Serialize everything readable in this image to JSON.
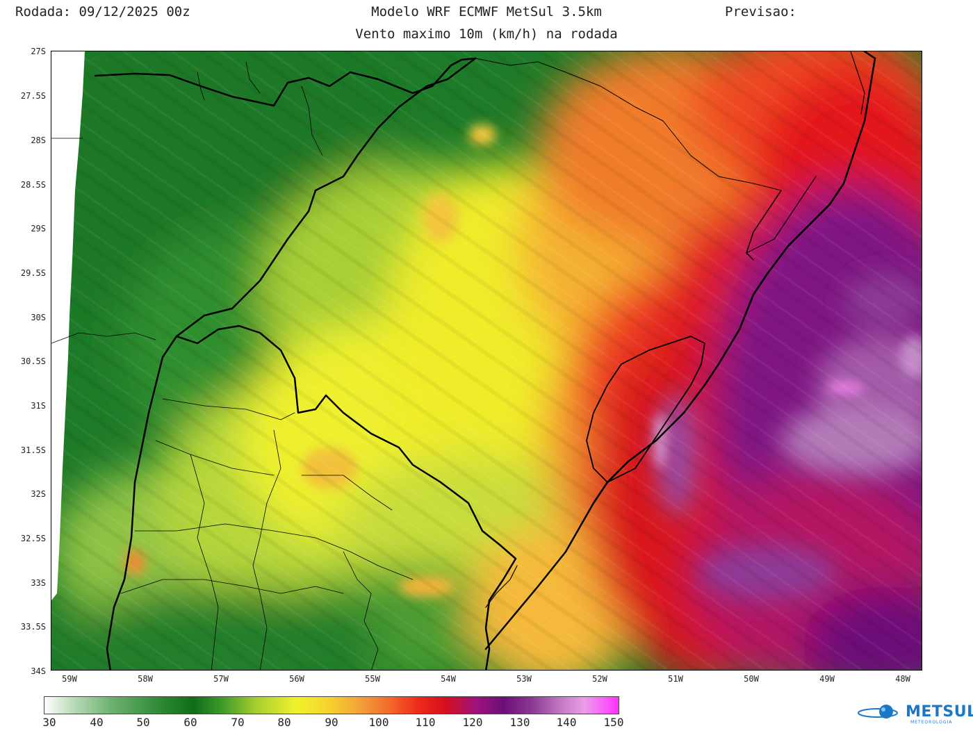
{
  "header": {
    "left": "Rodada: 09/12/2025 00z",
    "center": "Modelo WRF ECMWF MetSul 3.5km",
    "right": "Previsao:",
    "subtitle": "Vento maximo 10m (km/h) na rodada"
  },
  "map": {
    "lat_labels": [
      "27S",
      "27.5S",
      "28S",
      "28.5S",
      "29S",
      "29.5S",
      "30S",
      "30.5S",
      "31S",
      "31.5S",
      "32S",
      "32.5S",
      "33S",
      "33.5S",
      "34S"
    ],
    "lon_labels": [
      "59W",
      "58W",
      "57W",
      "56W",
      "55W",
      "54W",
      "53W",
      "52W",
      "51W",
      "50W",
      "49W",
      "48W"
    ]
  },
  "colorbar": {
    "labels": [
      "30",
      "40",
      "50",
      "60",
      "70",
      "80",
      "90",
      "100",
      "110",
      "120",
      "130",
      "140",
      "150"
    ]
  },
  "logo": {
    "text": "METSUL",
    "subtext": "METEOROLOGIA"
  }
}
